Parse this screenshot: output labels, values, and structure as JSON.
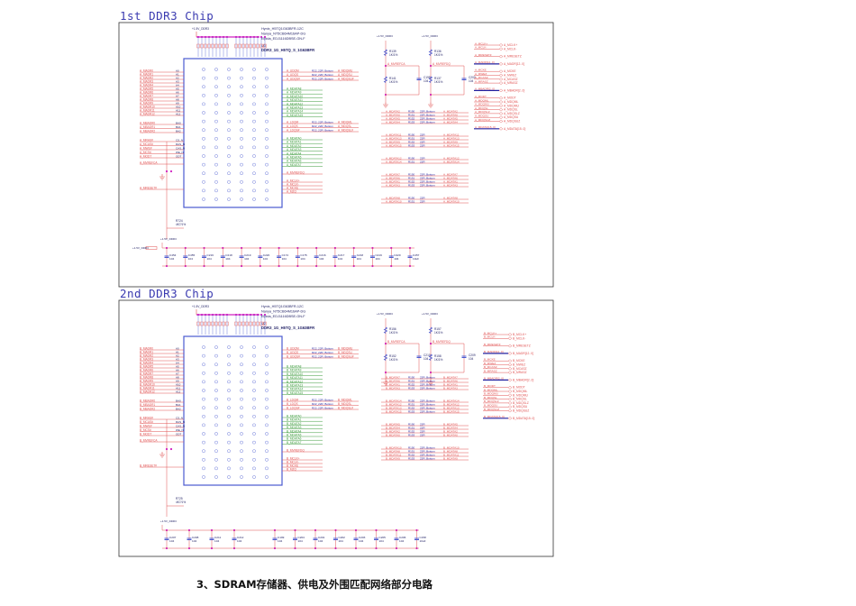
{
  "caption": "3、SDRAM存储器、供电及外围匹配网络部分电路",
  "colors": {
    "frame": "#333333",
    "chip": "#4a5ad0",
    "net_red": "#e05050",
    "net_green": "#3a9a3a",
    "junction": "#d020c0",
    "bus": "#2020a0",
    "text_dark": "#222266"
  },
  "panels": [
    {
      "title": "1st DDR3 Chip",
      "chip_parts": [
        "Hynix_H5TQ1G63BFR-12C",
        "Nanya_NT5CB64M16AP-DG",
        "Elpida_EDJ1116DBSE-GN-F"
      ],
      "chip_ref": "U3",
      "chip_name": "DDR3_1G_H5TQ_S_1G63BFR",
      "power": "+1.5V_DDR3",
      "addr_nets": [
        "A_MADR0",
        "A_MADR1",
        "A_MADR2",
        "A_MADR3",
        "A_MADR4",
        "A_MADR5",
        "A_MADR6",
        "A_MADR7",
        "A_MADR8",
        "A_MADR9",
        "A_MADR10",
        "A_MADR11",
        "A_MADR12"
      ],
      "addr_pins": [
        "A0",
        "A1",
        "A2",
        "A3",
        "A4",
        "A5",
        "A6",
        "A7",
        "A8",
        "A9",
        "A10",
        "A11",
        "A12"
      ],
      "bank_nets": [
        "A_MBADR0",
        "A_MBADR1",
        "A_MBADR2"
      ],
      "bank_pins": [
        "BA0",
        "BA1",
        "BA2"
      ],
      "ctrl_nets": [
        "A_MRAS#",
        "A_MCAS#",
        "A_MWE#",
        "A_MCS#",
        "A_MODT"
      ],
      "ctrl_pins": [
        "CS_N",
        "RAS_N",
        "CAS_N",
        "WE_N",
        "ODT"
      ],
      "vref_net": "A_MVREFCA",
      "reset_net": "A_MRESET#",
      "dqs_upper": [
        "A_UDQM",
        "A_UDQS",
        "A_UDQS#"
      ],
      "dqs_upper_to": [
        "A_MDQMU",
        "A_MDQSU",
        "A_MDQSU#"
      ],
      "dq_upper": [
        "A_MDATA8",
        "A_MDATA9",
        "A_MDATA10",
        "A_MDATA11",
        "A_MDATA12",
        "A_MDATA13",
        "A_MDATA14",
        "A_MDATA15"
      ],
      "dqs_lower": [
        "A_LDQM",
        "A_LDQS",
        "A_LDQS#"
      ],
      "dqs_lower_to": [
        "A_MDQML",
        "A_MDQSL",
        "A_MDQSL#"
      ],
      "dq_lower": [
        "A_MDATA0",
        "A_MDATA1",
        "A_MDATA2",
        "A_MDATA3",
        "A_MDATA4",
        "A_MDATA5",
        "A_MDATA6",
        "A_MDATA7"
      ],
      "vrefdq_net": "A_MVREFDQ",
      "clk_nets": [
        "A_MCLK+",
        "A_MCLK-",
        "A_MCKE",
        "A_MZQ"
      ],
      "damp_label": "R22_22R_Bottom",
      "divider": [
        {
          "top": "R139",
          "top_val": "1K/1%",
          "bot": "R141",
          "bot_val": "1K/1%",
          "net": "A_MVREFCA",
          "cap": "C198",
          "cap_val": "104"
        },
        {
          "top": "R136",
          "top_val": "1K/1%",
          "bot": "R137",
          "bot_val": "1K/1%",
          "net": "A_MVREFDQ",
          "cap": "C200",
          "cap_val": "104"
        }
      ],
      "series_groups": [
        {
          "from": [
            "A_MDATA2",
            "A_MDATA0",
            "A_MDATA5",
            "A_MDATA4"
          ],
          "to": [
            "A_MDATA2",
            "A_MDATA0",
            "A_MDATA5",
            "A_MDATA4"
          ],
          "rlabel": "22R_Bottom"
        },
        {
          "from": [
            "A_MDATA11",
            "A_MDATA13",
            "A_MDATA9",
            "A_MDATA15"
          ],
          "to": [
            "A_MDATA11",
            "A_MDATA13",
            "A_MDATA9",
            "A_MDATA15"
          ],
          "rlabel": "22R"
        },
        {
          "from": [
            "A_MDATA12",
            "A_MDATA14"
          ],
          "to": [
            "A_MDATA12",
            "A_MDATA14"
          ],
          "rlabel": "22R"
        },
        {
          "from": [
            "A_MDATA7",
            "A_MDATA6",
            "A_MDATA1",
            "A_MDATA3"
          ],
          "to": [
            "A_MDATA7",
            "A_MDATA6",
            "A_MDATA1",
            "A_MDATA3"
          ],
          "rlabel": "22R_Bottom"
        },
        {
          "from": [
            "A_MDATA8",
            "A_MDATA10"
          ],
          "to": [
            "A_MDATA8",
            "A_MDATA10"
          ],
          "rlabel": "22R"
        }
      ],
      "ports": [
        {
          "net": "A_MCLK+",
          "port": "A_MCLK+"
        },
        {
          "net": "A_MCLK-",
          "port": "A_MCLK-"
        },
        {
          "net": "A_MRESETZ",
          "port": "A_MRESETZ"
        },
        {
          "net": "A_MADR[12..0]",
          "port": "A_MADR[12..0]",
          "bus": true
        },
        {
          "net": "A_MCKE",
          "port": "A_MCKE"
        },
        {
          "net": "A_MWEZ",
          "port": "A_MWEZ"
        },
        {
          "net": "A_MCASZ",
          "port": "A_MCASZ"
        },
        {
          "net": "A_MRASZ",
          "port": "A_MRASZ"
        },
        {
          "net": "A_MBADR[2..0]",
          "port": "A_MBADR[2..0]",
          "bus": true
        },
        {
          "net": "A_MODT",
          "port": "A_MODT"
        },
        {
          "net": "A_MDQML",
          "port": "A_MDQML"
        },
        {
          "net": "A_MDQMU",
          "port": "A_MDQMU"
        },
        {
          "net": "A_MDQSL",
          "port": "A_MDQSL"
        },
        {
          "net": "A_MDQSLZ",
          "port": "A_MDQSLZ"
        },
        {
          "net": "A_MDQSU",
          "port": "A_MDQSU"
        },
        {
          "net": "A_MDQSUZ",
          "port": "A_MDQSUZ"
        },
        {
          "net": "A_MDATA[15..0]",
          "port": "A_MDATA[15..0]",
          "bus": true
        }
      ],
      "reset_res": {
        "ref": "R724",
        "val": "4K7/1%"
      },
      "caps": [
        {
          "ref": "C454",
          "val": "104"
        },
        {
          "ref": "C455",
          "val": "104"
        },
        {
          "ref": "C216",
          "val": "104"
        },
        {
          "ref": "C218",
          "val": "104"
        },
        {
          "ref": "C219",
          "val": "104"
        },
        {
          "ref": "C220",
          "val": "104"
        },
        {
          "ref": "C174",
          "val": "104"
        },
        {
          "ref": "C175",
          "val": "104"
        },
        {
          "ref": "C216",
          "val": "104"
        },
        {
          "ref": "C217",
          "val": "104"
        },
        {
          "ref": "C218",
          "val": "104"
        },
        {
          "ref": "C219",
          "val": "104"
        },
        {
          "ref": "C220",
          "val": "104"
        },
        {
          "ref": "C457",
          "val": "10uF"
        }
      ],
      "cap_power": "+1.5V_DDR3"
    },
    {
      "title": "2nd DDR3 Chip",
      "chip_parts": [
        "Hynix_H5TQ1G63BFR-12C",
        "Nanya_NT5CB64M16AP-DG",
        "Elpida_EDJ1116DBSE-GN-F"
      ],
      "chip_ref": "U2",
      "chip_name": "DDR3_1G_H5TQ_S_1G63BFR",
      "power": "+1.5V_DDR3",
      "addr_nets": [
        "B_MADR0",
        "B_MADR1",
        "B_MADR2",
        "B_MADR3",
        "B_MADR4",
        "B_MADR5",
        "B_MADR6",
        "B_MADR7",
        "B_MADR8",
        "B_MADR9",
        "B_MADR10",
        "B_MADR11",
        "B_MADR12"
      ],
      "addr_pins": [
        "A0",
        "A1",
        "A2",
        "A3",
        "A4",
        "A5",
        "A6",
        "A7",
        "A8",
        "A9",
        "A10",
        "A11",
        "A12"
      ],
      "bank_nets": [
        "B_MBADR0",
        "B_MBADR1",
        "B_MBADR2"
      ],
      "bank_pins": [
        "BA0",
        "BA1",
        "BA2"
      ],
      "ctrl_nets": [
        "B_MRAS#",
        "B_MCAS#",
        "B_MWE#",
        "B_MCS#",
        "B_MODT"
      ],
      "ctrl_pins": [
        "CS_N",
        "RAS_N",
        "CAS_N",
        "WE_N",
        "ODT"
      ],
      "vref_net": "B_MVREFCA",
      "reset_net": "B_MRESET#",
      "dqs_upper": [
        "B_UDQM",
        "B_UDQS",
        "B_UDQS#"
      ],
      "dqs_upper_to": [
        "B_MDQMU",
        "B_MDQSU",
        "B_MDQSU#"
      ],
      "dq_upper": [
        "B_MDATA8",
        "B_MDATA9",
        "B_MDATA10",
        "B_MDATA11",
        "B_MDATA12",
        "B_MDATA13",
        "B_MDATA14",
        "B_MDATA15"
      ],
      "dqs_lower": [
        "B_LDQM",
        "B_LDQS",
        "B_LDQS#"
      ],
      "dqs_lower_to": [
        "B_MDQML",
        "B_MDQSL",
        "B_MDQSL#"
      ],
      "dq_lower": [
        "B_MDATA0",
        "B_MDATA1",
        "B_MDATA2",
        "B_MDATA3",
        "B_MDATA4",
        "B_MDATA5",
        "B_MDATA6",
        "B_MDATA7"
      ],
      "vrefdq_net": "B_MVREFDQ",
      "clk_nets": [
        "B_MCLK+",
        "B_MCLK-",
        "B_MCKE",
        "B_MZQ"
      ],
      "damp_label": "R22_22R_Bottom",
      "divider": [
        {
          "top": "R156",
          "top_val": "1K/1%",
          "bot": "R152",
          "bot_val": "1K/1%",
          "net": "B_MVREFCA",
          "cap": "C210",
          "cap_val": "104"
        },
        {
          "top": "R157",
          "top_val": "1K/1%",
          "bot": "R158",
          "bot_val": "1K/1%",
          "net": "B_MVREFDQ",
          "cap": "C209",
          "cap_val": "104"
        }
      ],
      "series_groups": [
        {
          "from": [
            "B_MDATA7",
            "B_MDATA6",
            "B_MDATA1",
            "B_MDATA3"
          ],
          "to": [
            "B_MDATA7",
            "B_MDATA6",
            "B_MDATA1",
            "B_MDATA3"
          ],
          "rlabel": "22R_Bottom"
        },
        {
          "from": [
            "B_MDATA14",
            "B_MDATA12",
            "B_MDATA13",
            "B_MDATA15"
          ],
          "to": [
            "B_MDATA14",
            "B_MDATA12",
            "B_MDATA13",
            "B_MDATA15"
          ],
          "rlabel": "22R_Bottom"
        },
        {
          "from": [
            "B_MDATA5",
            "B_MDATA4",
            "B_MDATA2",
            "B_MDATA0"
          ],
          "to": [
            "B_MDATA5",
            "B_MDATA4",
            "B_MDATA2",
            "B_MDATA0"
          ],
          "rlabel": "22R"
        },
        {
          "from": [
            "B_MDATA10",
            "B_MDATA8",
            "B_MDATA11",
            "B_MDATA9"
          ],
          "to": [
            "B_MDATA10",
            "B_MDATA8",
            "B_MDATA11",
            "B_MDATA9"
          ],
          "rlabel": "22R_Bottom"
        }
      ],
      "ports": [
        {
          "net": "B_MCLK+",
          "port": "B_MCLK+"
        },
        {
          "net": "B_MCLK-",
          "port": "B_MCLK-"
        },
        {
          "net": "B_MRESETZ",
          "port": "B_MRESETZ"
        },
        {
          "net": "B_MADR[12..0]",
          "port": "B_MADR[12..0]",
          "bus": true
        },
        {
          "net": "B_MCKE",
          "port": "B_MCKE"
        },
        {
          "net": "B_MWEZ",
          "port": "B_MWEZ"
        },
        {
          "net": "B_MCASZ",
          "port": "B_MCASZ"
        },
        {
          "net": "B_MRASZ",
          "port": "B_MRASZ"
        },
        {
          "net": "B_MBADR[2..0]",
          "port": "B_MBADR[2..0]",
          "bus": true
        },
        {
          "net": "B_MODT",
          "port": "B_MODT"
        },
        {
          "net": "B_MDQML",
          "port": "B_MDQML"
        },
        {
          "net": "B_MDQMU",
          "port": "B_MDQMU"
        },
        {
          "net": "B_MDQSL",
          "port": "B_MDQSL"
        },
        {
          "net": "B_MDQSLZ",
          "port": "B_MDQSLZ"
        },
        {
          "net": "B_MDQSU",
          "port": "B_MDQSU"
        },
        {
          "net": "B_MDQSUZ",
          "port": "B_MDQSUZ"
        },
        {
          "net": "B_MDATA[15..0]",
          "port": "B_MDATA[15..0]",
          "bus": true
        }
      ],
      "reset_res": {
        "ref": "R725",
        "val": "4K7/1%"
      },
      "caps": [
        {
          "ref": "C207",
          "val": "104"
        },
        {
          "ref": "C208",
          "val": "104"
        },
        {
          "ref": "C211",
          "val": "104"
        },
        {
          "ref": "C212",
          "val": "104"
        },
        {
          "ref": "C199",
          "val": "104"
        },
        {
          "ref": "C204",
          "val": "104"
        },
        {
          "ref": "C201",
          "val": "104"
        },
        {
          "ref": "C202",
          "val": "104"
        },
        {
          "ref": "C203",
          "val": "104"
        },
        {
          "ref": "C205",
          "val": "104"
        },
        {
          "ref": "C206",
          "val": "104"
        },
        {
          "ref": "C158",
          "val": "10uF"
        }
      ],
      "cap_power": "+1.5V_DDR3"
    }
  ]
}
